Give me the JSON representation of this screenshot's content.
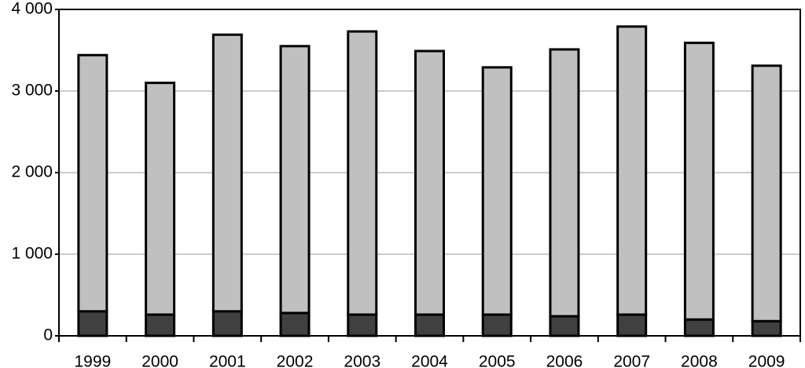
{
  "chart_data": {
    "type": "stacked_bar",
    "categories": [
      "1999",
      "2000",
      "2001",
      "2002",
      "2003",
      "2004",
      "2005",
      "2006",
      "2007",
      "2008",
      "2009"
    ],
    "series": [
      {
        "color": "#404040",
        "values": [
          300,
          260,
          300,
          280,
          260,
          260,
          260,
          240,
          260,
          200,
          180
        ]
      },
      {
        "color": "#c0c0c0",
        "values": [
          3140,
          2840,
          3390,
          3270,
          3470,
          3230,
          3030,
          3270,
          3530,
          3390,
          3130
        ]
      }
    ],
    "ylim": [
      0,
      4000
    ],
    "yticks": [
      0,
      {
        "value": 1000,
        "label": "1 000"
      },
      {
        "value": 2000,
        "label": "2 000"
      },
      {
        "value": 3000,
        "label": "3 000"
      },
      {
        "value": 4000,
        "label": "4 000"
      }
    ],
    "grid": true
  }
}
